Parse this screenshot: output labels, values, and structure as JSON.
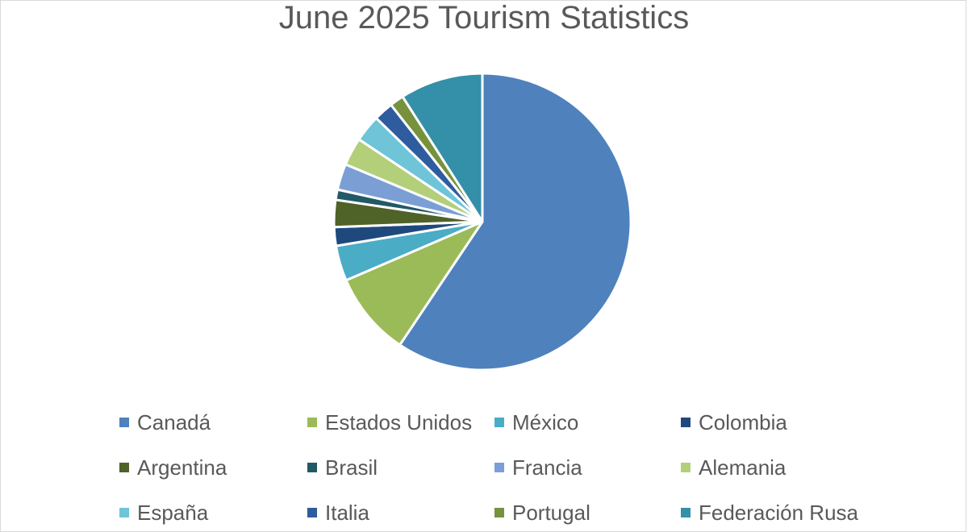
{
  "chart_data": {
    "type": "pie",
    "title": "June 2025 Tourism Statistics",
    "slices": [
      {
        "label": "Canadá",
        "value": 58.5,
        "color": "#4f81bd"
      },
      {
        "label": "Estados Unidos",
        "value": 9.0,
        "color": "#9bbb59"
      },
      {
        "label": "México",
        "value": 3.8,
        "color": "#4bacc6"
      },
      {
        "label": "Colombia",
        "value": 2.0,
        "color": "#1f497d"
      },
      {
        "label": "Argentina",
        "value": 2.9,
        "color": "#4f6228"
      },
      {
        "label": "Brasil",
        "value": 1.1,
        "color": "#215967"
      },
      {
        "label": "Francia",
        "value": 2.8,
        "color": "#7b9fd4"
      },
      {
        "label": "Alemania",
        "value": 3.0,
        "color": "#b3cf7a"
      },
      {
        "label": "España",
        "value": 2.9,
        "color": "#6fc4d8"
      },
      {
        "label": "Italia",
        "value": 2.1,
        "color": "#2e5c9e"
      },
      {
        "label": "Portugal",
        "value": 1.5,
        "color": "#76923c"
      },
      {
        "label": "Federación Rusa",
        "value": 8.9,
        "color": "#3490a8"
      }
    ],
    "legend": "bottom"
  }
}
